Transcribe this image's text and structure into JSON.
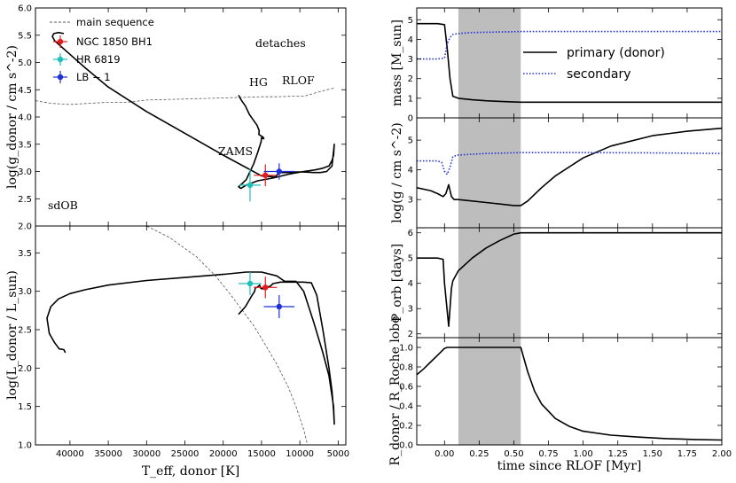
{
  "chart_data": [
    {
      "id": "kiel",
      "type": "line",
      "xlabel": "T_eff, donor [K]",
      "ylabel": "log(g_donor / cm s^-2)",
      "xlim": [
        44500,
        4000
      ],
      "ylim": [
        2.0,
        6.0
      ],
      "x_ticks": [
        40000,
        35000,
        30000,
        25000,
        20000,
        15000,
        10000,
        5000
      ],
      "y_ticks": [
        2.0,
        2.5,
        3.0,
        3.5,
        4.0,
        4.5,
        5.0,
        5.5,
        6.0
      ],
      "y_tick_labels": [
        "2.0",
        "2.5",
        "3.0",
        "3.5",
        "4.0",
        "4.5",
        "5.0",
        "5.5",
        "6.0"
      ],
      "x_tick_labels": [
        "40000",
        "35000",
        "30000",
        "25000",
        "20000",
        "15000",
        "10000",
        "5000"
      ],
      "legend": [
        {
          "label": "main sequence",
          "style": "dashed",
          "color": "#555555"
        },
        {
          "label": "NGC 1850 BH1",
          "color": "#e41a1c"
        },
        {
          "label": "HR 6819",
          "color": "#1fbfb8"
        },
        {
          "label": "LB − 1",
          "color": "#1f2fd6"
        }
      ],
      "annotations": [
        {
          "text": "detaches",
          "x": 12700,
          "y": 2.67
        },
        {
          "text": "HG",
          "x": 15200,
          "y": 3.5
        },
        {
          "text": "RLOF",
          "x": 9600,
          "y": 3.45
        },
        {
          "text": "ZAMS",
          "x": 17300,
          "y": 4.65
        },
        {
          "text": "sdOB",
          "x": 40300,
          "y": 5.65
        }
      ],
      "main_sequence": {
        "x": [
          44500,
          42500,
          40000,
          37500,
          35000,
          32500,
          30000,
          27500,
          25000,
          22500,
          20000,
          17500,
          15000,
          13000,
          11000,
          9500,
          8500,
          7500,
          6500,
          5500
        ],
        "y": [
          4.3,
          4.25,
          4.23,
          4.25,
          4.27,
          4.27,
          4.31,
          4.32,
          4.33,
          4.34,
          4.35,
          4.36,
          4.37,
          4.37,
          4.38,
          4.38,
          4.42,
          4.46,
          4.5,
          4.53
        ]
      },
      "track": {
        "x": [
          18000,
          17600,
          17100,
          16600,
          16100,
          15600,
          15300,
          15350,
          14800,
          14700,
          15000,
          15050,
          15500,
          16000,
          16500,
          17000,
          17500,
          18000,
          17700,
          17000,
          15500,
          13500,
          11500,
          9500,
          8000,
          7000,
          6200,
          5800,
          5600,
          5500,
          5800,
          6500,
          7300,
          8200,
          9400,
          10500,
          11500,
          12200,
          12700,
          13200,
          15000,
          20000,
          25000,
          30000,
          35000,
          38000,
          40000,
          41200,
          42000,
          42300,
          42100,
          41500,
          40800
        ],
        "y": [
          4.4,
          4.3,
          4.2,
          4.05,
          3.95,
          3.85,
          3.75,
          3.68,
          3.63,
          3.6,
          3.62,
          3.55,
          3.35,
          3.15,
          3.0,
          2.85,
          2.78,
          2.72,
          2.69,
          2.75,
          2.83,
          2.88,
          2.95,
          3.0,
          3.03,
          3.06,
          3.1,
          3.2,
          3.3,
          3.5,
          3.1,
          3.0,
          2.98,
          2.98,
          2.99,
          2.99,
          2.98,
          2.98,
          2.98,
          2.9,
          2.92,
          3.3,
          3.7,
          4.1,
          4.55,
          4.9,
          5.15,
          5.3,
          5.4,
          5.48,
          5.53,
          5.55,
          5.53
        ]
      },
      "stars": [
        {
          "name": "NGC 1850 BH1",
          "x": 14500,
          "y": 2.93,
          "xerr": 1500,
          "yerr": 0.2,
          "color": "#e41a1c"
        },
        {
          "name": "HR 6819",
          "x": 16500,
          "y": 2.75,
          "xerr": 1400,
          "yerr": 0.3,
          "color": "#1fbfb8"
        },
        {
          "name": "LB − 1",
          "x": 12700,
          "y": 3.0,
          "xerr": 2000,
          "yerr": 0.15,
          "color": "#1f2fd6"
        }
      ]
    },
    {
      "id": "hrd",
      "type": "line",
      "xlabel": "T_eff, donor [K]",
      "ylabel": "log(L_donor / L_sun)",
      "xlim": [
        44500,
        4000
      ],
      "ylim": [
        1.0,
        3.85
      ],
      "x_ticks": [
        40000,
        35000,
        30000,
        25000,
        20000,
        15000,
        10000,
        5000
      ],
      "x_tick_labels": [
        "40000",
        "35000",
        "30000",
        "25000",
        "20000",
        "15000",
        "10000",
        "5000"
      ],
      "y_ticks": [
        1.0,
        1.5,
        2.0,
        2.5,
        3.0,
        3.5
      ],
      "y_tick_labels": [
        "1.0",
        "1.5",
        "2.0",
        "2.5",
        "3.0",
        "3.5"
      ],
      "main_sequence": {
        "x": [
          31000,
          27000,
          23500,
          21000,
          19000,
          17500,
          16000,
          14500,
          13000,
          11500,
          10500,
          9500,
          9000
        ],
        "y": [
          3.9,
          3.7,
          3.45,
          3.2,
          2.95,
          2.75,
          2.55,
          2.3,
          2.05,
          1.75,
          1.5,
          1.2,
          1.0
        ]
      },
      "track": {
        "x": [
          18000,
          17100,
          16400,
          15900,
          15800,
          15600,
          15250,
          15100,
          14900,
          14650,
          14300,
          13800,
          13500,
          12500,
          11000,
          9600,
          8500,
          7800,
          7000,
          6200,
          5800,
          5600,
          5500,
          5600,
          6200,
          7000,
          8200,
          9500,
          10500,
          11200,
          12000,
          13000,
          15000,
          17000,
          20000,
          25000,
          30000,
          35000,
          38000,
          40000,
          41500,
          42500,
          43000,
          42700,
          42000,
          41400,
          40800,
          40600
        ],
        "y": [
          2.7,
          2.8,
          2.92,
          3.0,
          3.05,
          3.05,
          3.08,
          3.04,
          3.03,
          3.05,
          3.05,
          3.07,
          3.1,
          3.12,
          3.12,
          3.12,
          3.11,
          2.95,
          2.5,
          2.0,
          1.7,
          1.45,
          1.27,
          1.5,
          1.9,
          2.2,
          2.6,
          3.0,
          3.13,
          3.13,
          3.13,
          3.2,
          3.25,
          3.25,
          3.22,
          3.18,
          3.14,
          3.08,
          3.02,
          2.97,
          2.9,
          2.8,
          2.65,
          2.45,
          2.33,
          2.25,
          2.24,
          2.2
        ]
      },
      "stars": [
        {
          "name": "NGC 1850 BH1",
          "x": 14500,
          "y": 3.05,
          "xerr": 1500,
          "yerr": 0.14,
          "color": "#e41a1c"
        },
        {
          "name": "HR 6819",
          "x": 16500,
          "y": 3.1,
          "xerr": 1500,
          "yerr": 0.15,
          "color": "#1fbfb8"
        },
        {
          "name": "LB − 1",
          "x": 12700,
          "y": 2.8,
          "xerr": 2000,
          "yerr": 0.15,
          "color": "#1f2fd6"
        }
      ]
    },
    {
      "id": "mass",
      "type": "line",
      "ylabel": "mass [M_sun]",
      "xlim": [
        -0.2,
        2.0
      ],
      "ylim": [
        0,
        5.6
      ],
      "y_ticks": [
        0,
        1,
        2,
        3,
        4,
        5
      ],
      "y_tick_labels": [
        "0",
        "1",
        "2",
        "3",
        "4",
        "5"
      ],
      "shade": [
        0.1,
        0.55
      ],
      "legend": [
        {
          "label": "primary (donor)",
          "style": "solid",
          "color": "#000000"
        },
        {
          "label": "secondary",
          "style": "dotted",
          "color": "#1f2fd6"
        }
      ],
      "series": [
        {
          "name": "primary (donor)",
          "style": "solid",
          "color": "#000000",
          "x": [
            -0.2,
            -0.05,
            0.0,
            0.02,
            0.04,
            0.06,
            0.1,
            0.2,
            0.3,
            0.4,
            0.55,
            1.0,
            1.5,
            2.0
          ],
          "y": [
            4.8,
            4.8,
            4.75,
            3.5,
            2.0,
            1.1,
            1.0,
            0.92,
            0.87,
            0.84,
            0.8,
            0.8,
            0.8,
            0.8
          ]
        },
        {
          "name": "secondary",
          "style": "dotted",
          "color": "#1f2fd6",
          "x": [
            -0.2,
            -0.05,
            0.0,
            0.02,
            0.04,
            0.06,
            0.1,
            0.2,
            0.55,
            1.0,
            1.5,
            2.0
          ],
          "y": [
            3.0,
            3.0,
            3.05,
            3.8,
            4.1,
            4.25,
            4.3,
            4.35,
            4.4,
            4.4,
            4.4,
            4.4
          ]
        }
      ]
    },
    {
      "id": "logg",
      "type": "line",
      "ylabel": "log(g / cm s^-2)",
      "xlim": [
        -0.2,
        2.0
      ],
      "ylim": [
        2.05,
        5.75
      ],
      "y_ticks": [
        3,
        4,
        5
      ],
      "y_tick_labels": [
        "3",
        "4",
        "5"
      ],
      "shade": [
        0.1,
        0.55
      ],
      "series": [
        {
          "name": "primary (donor)",
          "style": "solid",
          "color": "#000000",
          "x": [
            -0.2,
            -0.1,
            -0.05,
            -0.01,
            0.01,
            0.03,
            0.05,
            0.07,
            0.1,
            0.2,
            0.3,
            0.4,
            0.5,
            0.55,
            0.6,
            0.7,
            0.8,
            1.0,
            1.2,
            1.5,
            1.75,
            2.0
          ],
          "y": [
            3.4,
            3.3,
            3.2,
            3.1,
            3.2,
            3.5,
            3.1,
            3.0,
            3.0,
            2.95,
            2.9,
            2.85,
            2.8,
            2.8,
            2.95,
            3.4,
            3.8,
            4.4,
            4.8,
            5.15,
            5.3,
            5.4
          ]
        },
        {
          "name": "secondary",
          "style": "dotted",
          "color": "#1f2fd6",
          "x": [
            -0.2,
            -0.05,
            -0.02,
            0.0,
            0.02,
            0.04,
            0.06,
            0.1,
            0.3,
            0.55,
            1.0,
            1.5,
            2.0
          ],
          "y": [
            4.3,
            4.3,
            4.25,
            3.95,
            3.85,
            4.1,
            4.45,
            4.5,
            4.55,
            4.58,
            4.58,
            4.57,
            4.55
          ]
        }
      ]
    },
    {
      "id": "porb",
      "type": "line",
      "ylabel": "P_orb [days]",
      "xlim": [
        -0.2,
        2.0
      ],
      "ylim": [
        1.85,
        6.2
      ],
      "y_ticks": [
        2,
        3,
        4,
        5,
        6
      ],
      "y_tick_labels": [
        "2",
        "3",
        "4",
        "5",
        "6"
      ],
      "shade": [
        0.1,
        0.55
      ],
      "series": [
        {
          "name": "primary (donor)",
          "style": "solid",
          "color": "#000000",
          "x": [
            -0.2,
            -0.05,
            -0.01,
            0.0,
            0.03,
            0.05,
            0.06,
            0.1,
            0.2,
            0.3,
            0.4,
            0.5,
            0.55,
            1.0,
            1.5,
            2.0
          ],
          "y": [
            5.0,
            5.0,
            4.95,
            4.0,
            2.3,
            3.8,
            4.1,
            4.5,
            5.0,
            5.4,
            5.7,
            5.95,
            6.0,
            6.0,
            6.0,
            6.0
          ]
        }
      ]
    },
    {
      "id": "rroche",
      "type": "line",
      "ylabel": "R_donor / R_Roche lobe",
      "xlabel": "time since RLOF [Myr]",
      "xlim": [
        -0.2,
        2.0
      ],
      "ylim": [
        0.0,
        1.1
      ],
      "x_ticks": [
        0.0,
        0.25,
        0.5,
        0.75,
        1.0,
        1.25,
        1.5,
        1.75,
        2.0
      ],
      "x_tick_labels": [
        "0.00",
        "0.25",
        "0.50",
        "0.75",
        "1.00",
        "1.25",
        "1.50",
        "1.75",
        "2.00"
      ],
      "y_ticks": [
        0.0,
        0.2,
        0.4,
        0.6,
        0.8,
        1.0
      ],
      "y_tick_labels": [
        "0.0",
        "0.2",
        "0.4",
        "0.6",
        "0.8",
        "1.0"
      ],
      "shade": [
        0.1,
        0.55
      ],
      "series": [
        {
          "name": "primary (donor)",
          "style": "solid",
          "color": "#000000",
          "x": [
            -0.2,
            -0.15,
            -0.1,
            -0.05,
            0.0,
            0.02,
            0.1,
            0.3,
            0.55,
            0.6,
            0.65,
            0.7,
            0.8,
            0.9,
            1.0,
            1.2,
            1.4,
            1.6,
            1.8,
            2.0
          ],
          "y": [
            0.72,
            0.78,
            0.85,
            0.92,
            0.99,
            1.0,
            1.0,
            1.0,
            1.0,
            0.75,
            0.55,
            0.42,
            0.27,
            0.19,
            0.14,
            0.1,
            0.08,
            0.065,
            0.055,
            0.05
          ]
        }
      ]
    }
  ]
}
